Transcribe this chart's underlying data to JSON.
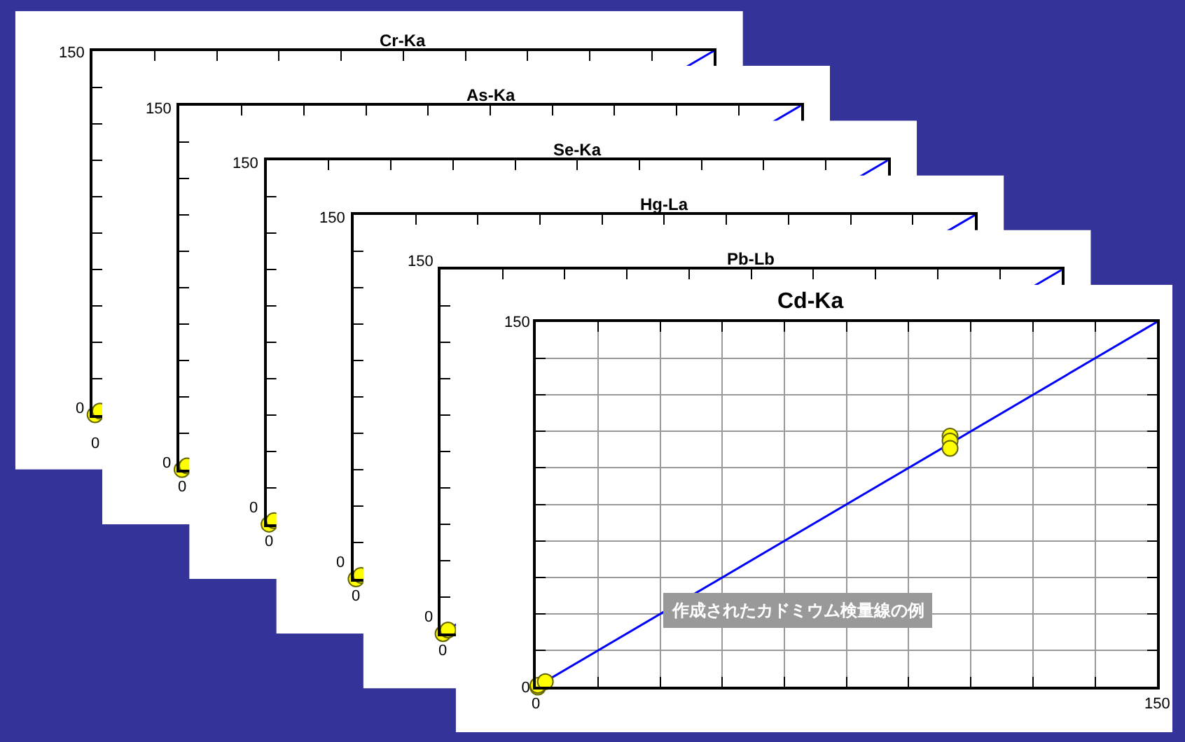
{
  "chart_data": [
    {
      "type": "other",
      "title": "Cr-Ka",
      "annotations": [
        "150",
        "0",
        "0"
      ]
    },
    {
      "type": "other",
      "title": "As-Ka",
      "annotations": [
        "150",
        "0",
        "0"
      ]
    },
    {
      "type": "other",
      "title": "Se-Ka",
      "annotations": [
        "150",
        "0",
        "0"
      ]
    },
    {
      "type": "other",
      "title": "Hg-La",
      "annotations": [
        "150",
        "0",
        "0"
      ]
    },
    {
      "type": "other",
      "title": "Pb-Lb",
      "annotations": [
        "150",
        "0",
        "0"
      ]
    },
    {
      "type": "scatter",
      "title": "Cd-Ka",
      "xlim": [
        0,
        150
      ],
      "ylim": [
        0,
        150
      ],
      "xticks": [
        0,
        {
          "value": 15,
          "label": null
        },
        {
          "value": 30,
          "label": null
        },
        {
          "value": 45,
          "label": null
        },
        {
          "value": 60,
          "label": null
        },
        {
          "value": 75,
          "label": null
        },
        {
          "value": 90,
          "label": null
        },
        {
          "value": 105,
          "label": null
        },
        {
          "value": 120,
          "label": null
        },
        {
          "value": 135,
          "label": null
        },
        150
      ],
      "yticks": [
        0,
        {
          "value": 15,
          "label": null
        },
        {
          "value": 30,
          "label": null
        },
        {
          "value": 45,
          "label": null
        },
        {
          "value": 60,
          "label": null
        },
        {
          "value": 75,
          "label": null
        },
        {
          "value": 90,
          "label": null
        },
        {
          "value": 105,
          "label": null
        },
        {
          "value": 120,
          "label": null
        },
        {
          "value": 135,
          "label": null
        },
        150
      ],
      "grid": true,
      "annotations": [
        "作成されたカドミウム検量線の例"
      ],
      "series": [
        {
          "type": "line",
          "color": "#0000ff",
          "x": [
            0,
            150
          ],
          "values": [
            0,
            150
          ]
        },
        {
          "color": "#ffff00",
          "marker": "circle",
          "x": [
            0.5,
            0.5,
            2.3,
            100,
            100,
            100
          ],
          "values": [
            0,
            0.7,
            2.2,
            103,
            101,
            98
          ]
        }
      ]
    }
  ]
}
